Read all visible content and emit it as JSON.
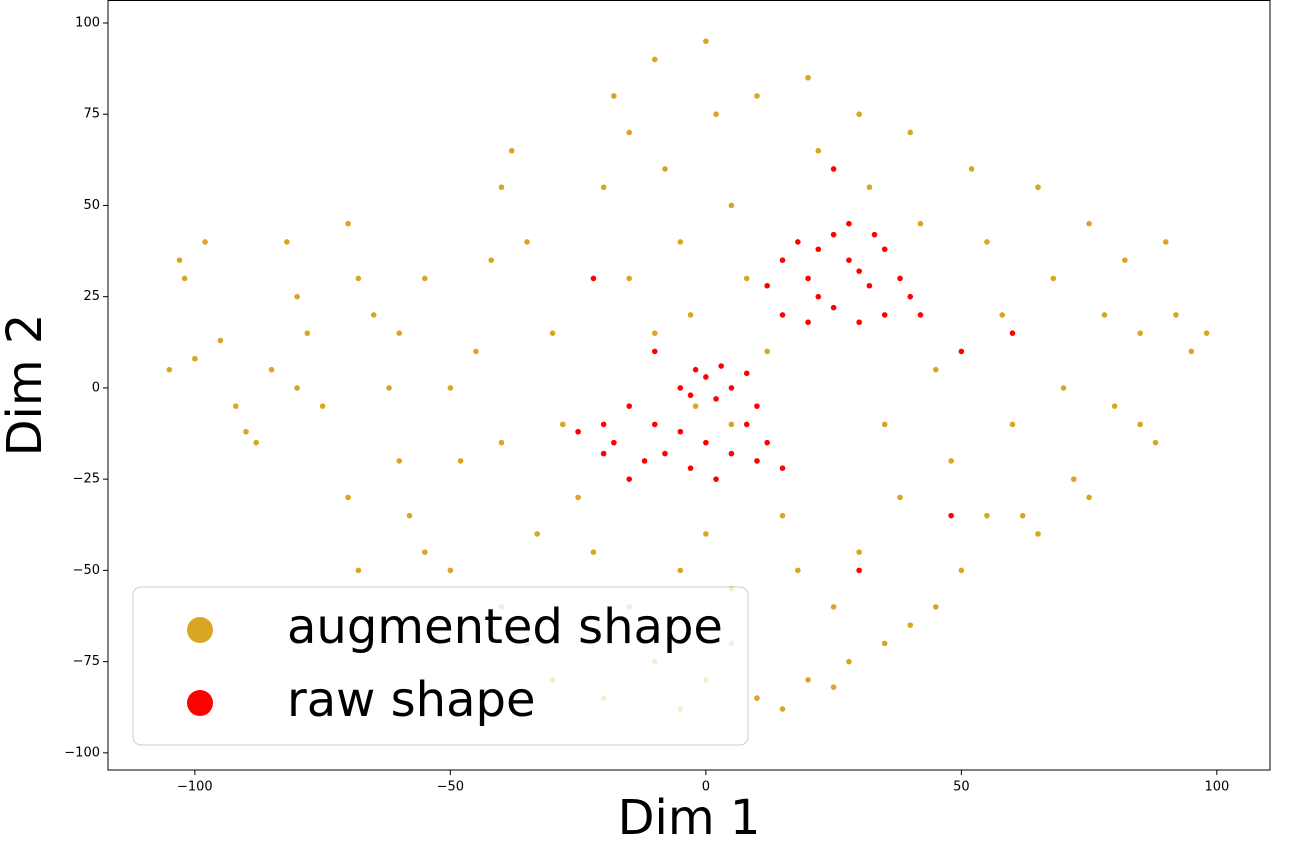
{
  "chart_data": {
    "type": "scatter",
    "x_label": "Dim 1",
    "y_label": "Dim 2",
    "xlim": [
      -117,
      110.4
    ],
    "ylim": [
      -104.7,
      106.3
    ],
    "xticks": [
      {
        "value": -100,
        "label": "−100"
      },
      {
        "value": -50,
        "label": "−50"
      },
      0,
      50,
      100
    ],
    "yticks": [
      {
        "value": -100,
        "label": "−100"
      },
      {
        "value": -75,
        "label": "−75"
      },
      {
        "value": -50,
        "label": "−50"
      },
      {
        "value": -25,
        "label": "−25"
      },
      0,
      25,
      50,
      75,
      100
    ],
    "grid": false,
    "legend": "lower left",
    "series": [
      {
        "name": "augmented shape",
        "color": "#DAA520",
        "x": [
          -103,
          -98,
          -102,
          -95,
          -100,
          -105,
          -92,
          -90,
          -85,
          -82,
          -80,
          -78,
          -75,
          -70,
          -68,
          -65,
          -62,
          -60,
          -58,
          -55,
          -70,
          -68,
          -50,
          -48,
          -45,
          -42,
          -40,
          -38,
          -35,
          -30,
          -28,
          -25,
          -22,
          -20,
          -18,
          -15,
          -10,
          -8,
          -5,
          -3,
          0,
          2,
          5,
          8,
          10,
          12,
          15,
          18,
          20,
          22,
          25,
          28,
          30,
          32,
          35,
          38,
          40,
          42,
          45,
          48,
          50,
          52,
          55,
          58,
          60,
          62,
          65,
          68,
          70,
          72,
          75,
          78,
          80,
          82,
          85,
          88,
          90,
          92,
          95,
          98,
          -15,
          -10,
          -5,
          0,
          5,
          10,
          15,
          20,
          25,
          35,
          40,
          45,
          -30,
          -35,
          -40,
          -20,
          -60,
          -55,
          -50,
          -40,
          -33,
          -15,
          -10,
          0,
          5,
          -5,
          30,
          55,
          65,
          75,
          85,
          -88,
          -80,
          5,
          -2
        ],
        "y": [
          35,
          40,
          30,
          13,
          8,
          5,
          -5,
          -12,
          5,
          40,
          25,
          15,
          -5,
          45,
          30,
          20,
          0,
          -20,
          -35,
          -45,
          -30,
          -50,
          -50,
          -20,
          10,
          35,
          55,
          65,
          40,
          15,
          -10,
          -30,
          -45,
          55,
          80,
          70,
          90,
          60,
          40,
          20,
          95,
          75,
          50,
          30,
          80,
          10,
          -35,
          -50,
          85,
          65,
          -60,
          -75,
          75,
          55,
          -10,
          -30,
          70,
          45,
          5,
          -20,
          -50,
          60,
          40,
          20,
          -10,
          -35,
          55,
          30,
          0,
          -25,
          45,
          20,
          -5,
          35,
          15,
          -15,
          40,
          20,
          10,
          15,
          -60,
          -75,
          -88,
          -80,
          -70,
          -85,
          -88,
          -80,
          -82,
          -70,
          -65,
          -60,
          -80,
          -70,
          -60,
          -85,
          15,
          30,
          0,
          -15,
          -40,
          30,
          15,
          -40,
          -55,
          -50,
          -45,
          -35,
          -40,
          -30,
          -10,
          -15,
          0,
          -10,
          -5
        ]
      },
      {
        "name": "raw shape",
        "color": "#FF0000",
        "x": [
          15,
          18,
          20,
          22,
          25,
          28,
          30,
          32,
          35,
          38,
          15,
          20,
          25,
          30,
          35,
          12,
          28,
          40,
          22,
          33,
          -20,
          -18,
          -15,
          -12,
          -10,
          -8,
          -5,
          -3,
          0,
          2,
          5,
          8,
          10,
          12,
          15,
          -15,
          -20,
          -5,
          -2,
          0,
          3,
          5,
          8,
          -3,
          2,
          10,
          -25,
          42,
          50,
          48,
          30,
          -22,
          -10,
          60,
          25
        ],
        "y": [
          35,
          40,
          30,
          38,
          42,
          35,
          32,
          28,
          38,
          30,
          20,
          18,
          22,
          18,
          20,
          28,
          45,
          25,
          25,
          42,
          -10,
          -15,
          -5,
          -20,
          -10,
          -18,
          -12,
          -22,
          -15,
          -25,
          -18,
          -10,
          -20,
          -15,
          -22,
          -25,
          -18,
          0,
          5,
          3,
          6,
          0,
          4,
          -2,
          -3,
          -5,
          -12,
          20,
          10,
          -35,
          -50,
          30,
          10,
          15,
          60
        ]
      }
    ]
  }
}
